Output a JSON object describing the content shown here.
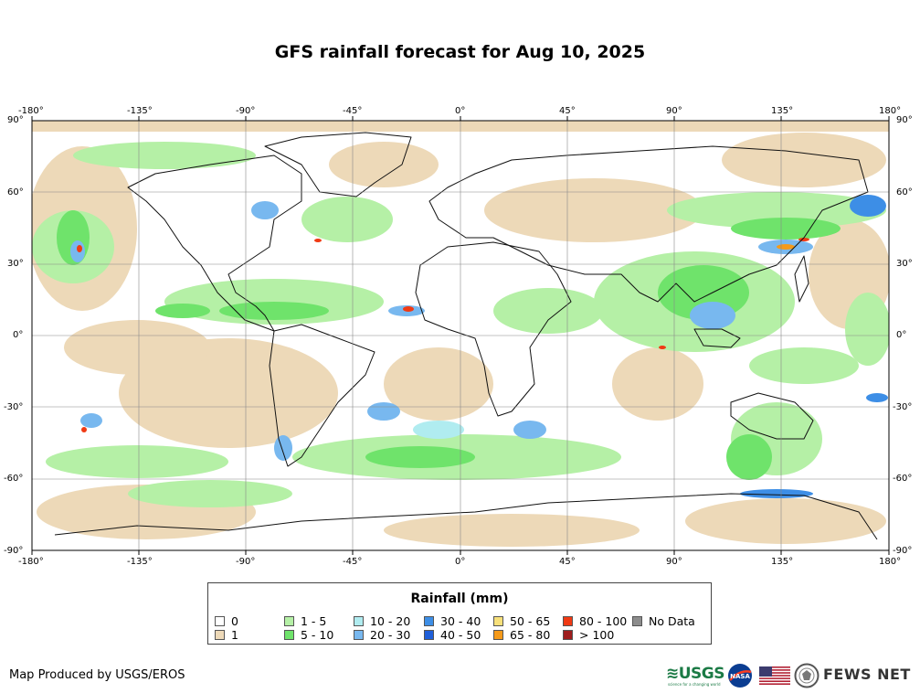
{
  "title": "GFS rainfall forecast for Aug 10, 2025",
  "axes": {
    "x_ticks": [
      "-180°",
      "-135°",
      "-90°",
      "-45°",
      "0°",
      "45°",
      "90°",
      "135°",
      "180°"
    ],
    "y_ticks": [
      "90°",
      "60°",
      "30°",
      "0°",
      "-30°",
      "-60°",
      "-90°"
    ]
  },
  "legend": {
    "title": "Rainfall (mm)",
    "items": [
      {
        "label": "0",
        "color": "#ffffff"
      },
      {
        "label": "1",
        "color": "#edd9b8"
      },
      {
        "label": "1 - 5",
        "color": "#b5f0a6"
      },
      {
        "label": "5 - 10",
        "color": "#6fe36b"
      },
      {
        "label": "10 - 20",
        "color": "#b0ecf0"
      },
      {
        "label": "20 - 30",
        "color": "#78b8ef"
      },
      {
        "label": "30 - 40",
        "color": "#3d8ee6"
      },
      {
        "label": "40 - 50",
        "color": "#1f5fd9"
      },
      {
        "label": "50 - 65",
        "color": "#f7e07a"
      },
      {
        "label": "65 - 80",
        "color": "#f59a1a"
      },
      {
        "label": "80 - 100",
        "color": "#f03a14"
      },
      {
        "label": "> 100",
        "color": "#9e1d1d"
      },
      {
        "label": "No Data",
        "color": "#8c8c8c"
      }
    ]
  },
  "credit": "Map Produced by USGS/EROS",
  "logos": {
    "usgs": "≋USGS",
    "usgs_tagline": "science for a changing world",
    "nasa": "NASA",
    "fews": "FEWS NET"
  }
}
